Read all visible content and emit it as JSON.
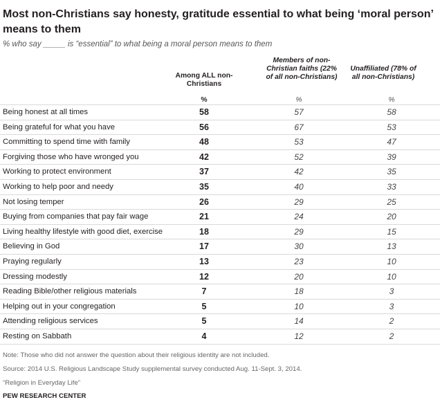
{
  "title": "Most non-Christians say honesty, gratitude essential to what being ‘moral person’ means to them",
  "subtitle": "% who say _____ is “essential” to what being a moral person means to them",
  "columns": [
    "Among ALL non-Christians",
    "Members of non-Christian faiths (22% of all non-Christians)",
    "Unaffiliated (78% of all non-Christians)"
  ],
  "pct_symbol": "%",
  "chart_data": {
    "type": "table",
    "columns": [
      "Among ALL non-Christians",
      "Members of non-Christian faiths (22% of all non-Christians)",
      "Unaffiliated (78% of all non-Christians)"
    ],
    "rows": [
      {
        "label": "Being honest at all times",
        "values": [
          "58",
          "57",
          "58"
        ]
      },
      {
        "label": "Being grateful for what you have",
        "values": [
          "56",
          "67",
          "53"
        ]
      },
      {
        "label": "Committing to spend time with family",
        "values": [
          "48",
          "53",
          "47"
        ]
      },
      {
        "label": "Forgiving those who have wronged you",
        "values": [
          "42",
          "52",
          "39"
        ]
      },
      {
        "label": "Working to protect environment",
        "values": [
          "37",
          "42",
          "35"
        ]
      },
      {
        "label": "Working to help poor and needy",
        "values": [
          "35",
          "40",
          "33"
        ]
      },
      {
        "label": "Not losing temper",
        "values": [
          "26",
          "29",
          "25"
        ]
      },
      {
        "label": "Buying from companies that pay fair wage",
        "values": [
          "21",
          "24",
          "20"
        ]
      },
      {
        "label": "Living healthy lifestyle with good diet, exercise",
        "values": [
          "18",
          "29",
          "15"
        ]
      },
      {
        "label": "Believing in God",
        "values": [
          "17",
          "30",
          "13"
        ]
      },
      {
        "label": "Praying regularly",
        "values": [
          "13",
          "23",
          "10"
        ]
      },
      {
        "label": "Dressing modestly",
        "values": [
          "12",
          "20",
          "10"
        ]
      },
      {
        "label": "Reading Bible/other religious materials",
        "values": [
          "7",
          "18",
          "3"
        ]
      },
      {
        "label": "Helping out in your congregation",
        "values": [
          "5",
          "10",
          "3"
        ]
      },
      {
        "label": "Attending religious services",
        "values": [
          "5",
          "14",
          "2"
        ]
      },
      {
        "label": "Resting on Sabbath",
        "values": [
          "4",
          "12",
          "2"
        ]
      }
    ]
  },
  "notes": {
    "note": "Note: Those who did not answer the question about their religious identity are not included.",
    "source": "Source: 2014 U.S. Religious Landscape Study supplemental survey conducted Aug. 11-Sept. 3, 2014.",
    "report": "“Religion in Everyday Life”",
    "org": "PEW RESEARCH CENTER"
  }
}
